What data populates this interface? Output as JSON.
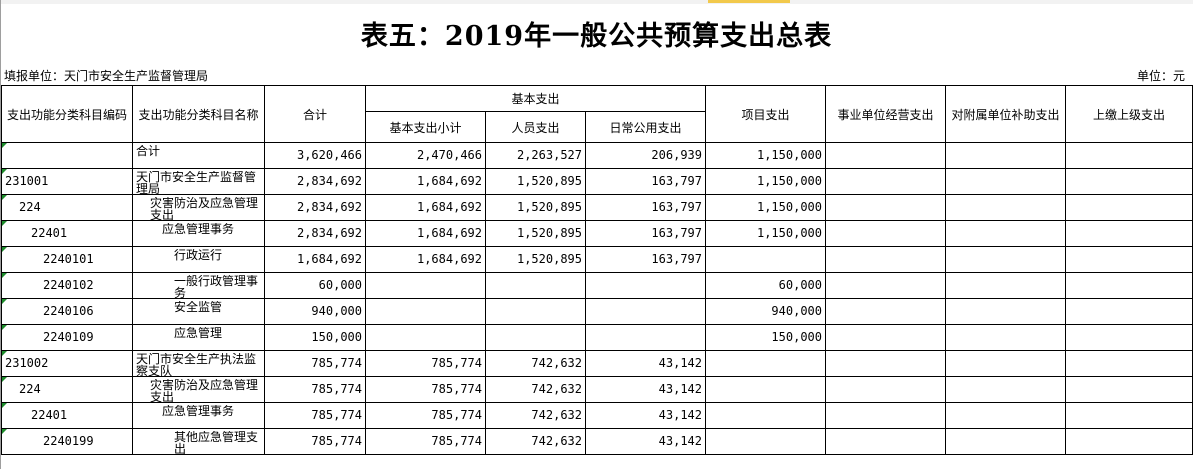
{
  "title": "表五：2019年一般公共预算支出总表",
  "unit_left": "填报单位：天门市安全生产监督管理局",
  "unit_right": "单位：元",
  "headers": {
    "code": "支出功能分类科目编码",
    "name": "支出功能分类科目名称",
    "total": "合计",
    "basic": "基本支出",
    "basic_subtotal": "基本支出小计",
    "personnel": "人员支出",
    "daily": "日常公用支出",
    "project": "项目支出",
    "business": "事业单位经营支出",
    "subsidy": "对附属单位补助支出",
    "upper": "上缴上级支出"
  },
  "rows": [
    {
      "code": "",
      "name": "合计",
      "total": "3,620,466",
      "basic_subtotal": "2,470,466",
      "personnel": "2,263,527",
      "daily": "206,939",
      "project": "1,150,000"
    },
    {
      "code": "231001",
      "name": "天门市安全生产监督管理局",
      "total": "2,834,692",
      "basic_subtotal": "1,684,692",
      "personnel": "1,520,895",
      "daily": "163,797",
      "project": "1,150,000"
    },
    {
      "code": "224",
      "name": "灾害防治及应急管理支出",
      "total": "2,834,692",
      "basic_subtotal": "1,684,692",
      "personnel": "1,520,895",
      "daily": "163,797",
      "project": "1,150,000"
    },
    {
      "code": "22401",
      "name": "应急管理事务",
      "total": "2,834,692",
      "basic_subtotal": "1,684,692",
      "personnel": "1,520,895",
      "daily": "163,797",
      "project": "1,150,000"
    },
    {
      "code": "2240101",
      "name": "行政运行",
      "total": "1,684,692",
      "basic_subtotal": "1,684,692",
      "personnel": "1,520,895",
      "daily": "163,797",
      "project": ""
    },
    {
      "code": "2240102",
      "name": "一般行政管理事务",
      "total": "60,000",
      "basic_subtotal": "",
      "personnel": "",
      "daily": "",
      "project": "60,000"
    },
    {
      "code": "2240106",
      "name": "安全监管",
      "total": "940,000",
      "basic_subtotal": "",
      "personnel": "",
      "daily": "",
      "project": "940,000"
    },
    {
      "code": "2240109",
      "name": "应急管理",
      "total": "150,000",
      "basic_subtotal": "",
      "personnel": "",
      "daily": "",
      "project": "150,000"
    },
    {
      "code": "231002",
      "name": "天门市安全生产执法监察支队",
      "total": "785,774",
      "basic_subtotal": "785,774",
      "personnel": "742,632",
      "daily": "43,142",
      "project": ""
    },
    {
      "code": "224",
      "name": "灾害防治及应急管理支出",
      "total": "785,774",
      "basic_subtotal": "785,774",
      "personnel": "742,632",
      "daily": "43,142",
      "project": ""
    },
    {
      "code": "22401",
      "name": "应急管理事务",
      "total": "785,774",
      "basic_subtotal": "785,774",
      "personnel": "742,632",
      "daily": "43,142",
      "project": ""
    },
    {
      "code": "2240199",
      "name": "其他应急管理支出",
      "total": "785,774",
      "basic_subtotal": "785,774",
      "personnel": "742,632",
      "daily": "43,142",
      "project": ""
    }
  ]
}
